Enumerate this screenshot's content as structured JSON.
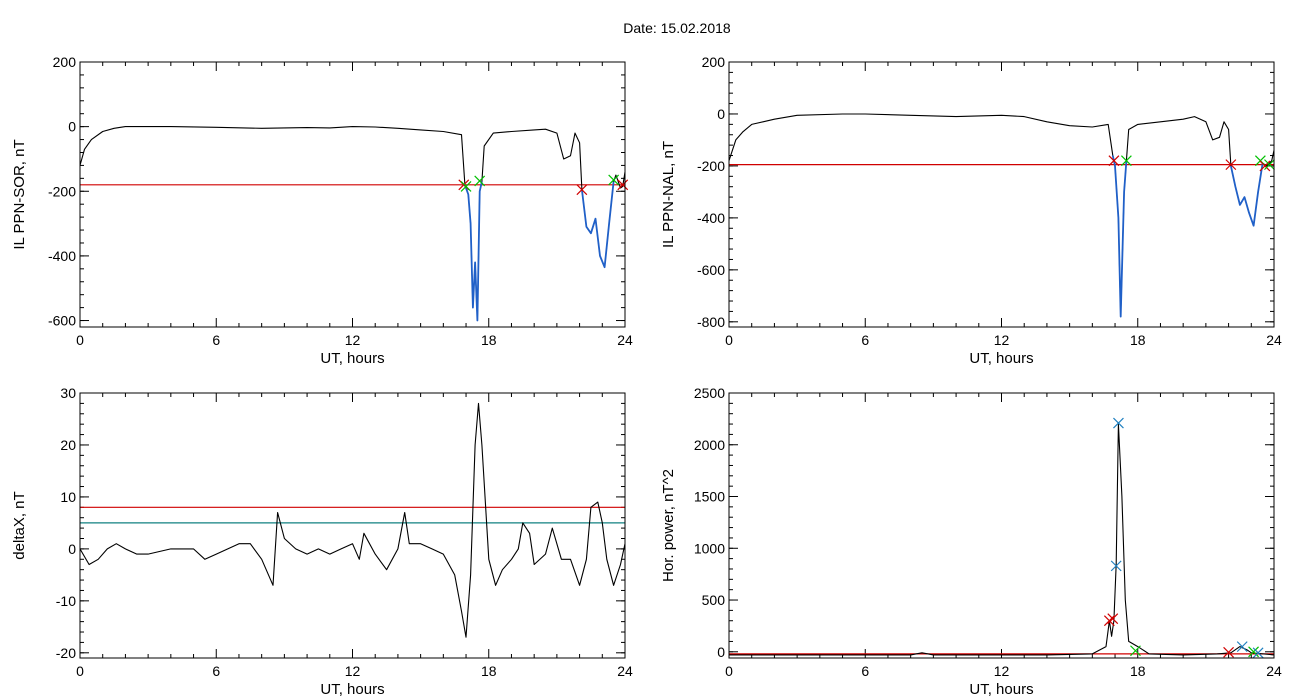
{
  "figure_title": "Date:  15.02.2018",
  "chart_data": [
    {
      "id": "ppn-sor",
      "type": "line",
      "xlabel": "UT, hours",
      "ylabel": "IL PPN-SOR, nT",
      "xlim": [
        0,
        24
      ],
      "ylim": [
        -620,
        200
      ],
      "xticks": [
        "0",
        "6",
        "12",
        "18",
        "24"
      ],
      "yticks": [
        {
          "v": 200,
          "t": "200"
        },
        {
          "v": 0,
          "t": "0"
        },
        {
          "v": -200,
          "t": "-200"
        },
        {
          "v": -400,
          "t": "-400"
        },
        {
          "v": -600,
          "t": "-600"
        }
      ],
      "series": [
        {
          "color": "#000000",
          "points": [
            [
              0,
              -120
            ],
            [
              0.2,
              -70
            ],
            [
              0.5,
              -40
            ],
            [
              1,
              -15
            ],
            [
              1.5,
              -5
            ],
            [
              2,
              0
            ],
            [
              4,
              0
            ],
            [
              6,
              -2
            ],
            [
              8,
              -5
            ],
            [
              10,
              -3
            ],
            [
              11,
              -4
            ],
            [
              12,
              0
            ],
            [
              13,
              -1
            ],
            [
              14,
              -5
            ],
            [
              15,
              -10
            ],
            [
              16,
              -15
            ],
            [
              16.8,
              -25
            ],
            [
              16.95,
              -180
            ],
            [
              17.1,
              -210
            ],
            [
              17.2,
              -300
            ],
            [
              17.3,
              -560
            ],
            [
              17.4,
              -420
            ],
            [
              17.5,
              -600
            ],
            [
              17.6,
              -200
            ],
            [
              17.7,
              -170
            ],
            [
              17.8,
              -60
            ],
            [
              18.2,
              -20
            ],
            [
              19,
              -15
            ],
            [
              20,
              -10
            ],
            [
              20.5,
              -8
            ],
            [
              21,
              -20
            ],
            [
              21.3,
              -100
            ],
            [
              21.6,
              -90
            ],
            [
              21.8,
              -20
            ],
            [
              22,
              -50
            ],
            [
              22.1,
              -195
            ],
            [
              22.3,
              -310
            ],
            [
              22.5,
              -330
            ],
            [
              22.7,
              -285
            ],
            [
              22.9,
              -400
            ],
            [
              23.1,
              -435
            ],
            [
              23.3,
              -300
            ],
            [
              23.5,
              -170
            ],
            [
              23.6,
              -150
            ],
            [
              23.8,
              -190
            ],
            [
              23.9,
              -185
            ],
            [
              24,
              -140
            ]
          ]
        }
      ],
      "highlights": [
        {
          "color": "#2060c8",
          "points": [
            [
              16.95,
              -180
            ],
            [
              17.1,
              -210
            ],
            [
              17.2,
              -300
            ],
            [
              17.3,
              -560
            ],
            [
              17.4,
              -420
            ],
            [
              17.5,
              -600
            ],
            [
              17.6,
              -200
            ],
            [
              17.7,
              -170
            ]
          ]
        },
        {
          "color": "#2060c8",
          "points": [
            [
              22.1,
              -195
            ],
            [
              22.3,
              -310
            ],
            [
              22.5,
              -330
            ],
            [
              22.7,
              -285
            ],
            [
              22.9,
              -400
            ],
            [
              23.1,
              -435
            ],
            [
              23.3,
              -300
            ],
            [
              23.5,
              -170
            ]
          ]
        }
      ],
      "hlines": [
        {
          "y": -180,
          "color": "#d00000"
        }
      ],
      "markers": [
        {
          "x": 16.9,
          "y": -180,
          "color": "#d00000"
        },
        {
          "x": 17.0,
          "y": -185,
          "color": "#00c000"
        },
        {
          "x": 17.6,
          "y": -168,
          "color": "#00c000"
        },
        {
          "x": 22.1,
          "y": -195,
          "color": "#d00000"
        },
        {
          "x": 23.5,
          "y": -165,
          "color": "#00c000"
        },
        {
          "x": 23.9,
          "y": -180,
          "color": "#d00000"
        }
      ]
    },
    {
      "id": "ppn-nal",
      "type": "line",
      "xlabel": "UT, hours",
      "ylabel": "IL PPN-NAL, nT",
      "xlim": [
        0,
        24
      ],
      "ylim": [
        -820,
        200
      ],
      "xticks": [
        "0",
        "6",
        "12",
        "18",
        "24"
      ],
      "yticks": [
        {
          "v": 200,
          "t": "200"
        },
        {
          "v": 0,
          "t": "0"
        },
        {
          "v": -200,
          "t": "-200"
        },
        {
          "v": -400,
          "t": "-400"
        },
        {
          "v": -600,
          "t": "-600"
        },
        {
          "v": -800,
          "t": "-800"
        }
      ],
      "series": [
        {
          "color": "#000000",
          "points": [
            [
              0,
              -180
            ],
            [
              0.3,
              -100
            ],
            [
              0.6,
              -70
            ],
            [
              1,
              -40
            ],
            [
              1.5,
              -30
            ],
            [
              2,
              -20
            ],
            [
              3,
              -5
            ],
            [
              5,
              0
            ],
            [
              6,
              0
            ],
            [
              8,
              -5
            ],
            [
              10,
              -10
            ],
            [
              12,
              -5
            ],
            [
              13,
              -10
            ],
            [
              14,
              -30
            ],
            [
              15,
              -45
            ],
            [
              16,
              -50
            ],
            [
              16.7,
              -40
            ],
            [
              16.9,
              -160
            ],
            [
              17.0,
              -200
            ],
            [
              17.15,
              -400
            ],
            [
              17.25,
              -780
            ],
            [
              17.4,
              -300
            ],
            [
              17.5,
              -180
            ],
            [
              17.6,
              -60
            ],
            [
              18,
              -40
            ],
            [
              19,
              -30
            ],
            [
              20,
              -20
            ],
            [
              20.5,
              -10
            ],
            [
              21,
              -30
            ],
            [
              21.3,
              -100
            ],
            [
              21.6,
              -90
            ],
            [
              21.8,
              -30
            ],
            [
              22.0,
              -60
            ],
            [
              22.1,
              -200
            ],
            [
              22.3,
              -280
            ],
            [
              22.5,
              -350
            ],
            [
              22.7,
              -320
            ],
            [
              22.9,
              -380
            ],
            [
              23.1,
              -430
            ],
            [
              23.3,
              -300
            ],
            [
              23.5,
              -190
            ],
            [
              23.7,
              -200
            ],
            [
              23.9,
              -180
            ],
            [
              24,
              -140
            ]
          ]
        }
      ],
      "highlights": [
        {
          "color": "#2060c8",
          "points": [
            [
              16.9,
              -160
            ],
            [
              17.0,
              -200
            ],
            [
              17.15,
              -400
            ],
            [
              17.25,
              -780
            ],
            [
              17.4,
              -300
            ],
            [
              17.5,
              -180
            ]
          ]
        },
        {
          "color": "#2060c8",
          "points": [
            [
              22.1,
              -200
            ],
            [
              22.3,
              -280
            ],
            [
              22.5,
              -350
            ],
            [
              22.7,
              -320
            ],
            [
              22.9,
              -380
            ],
            [
              23.1,
              -430
            ],
            [
              23.3,
              -300
            ],
            [
              23.5,
              -190
            ]
          ]
        }
      ],
      "hlines": [
        {
          "y": -195,
          "color": "#d00000"
        }
      ],
      "markers": [
        {
          "x": 16.95,
          "y": -180,
          "color": "#d00000"
        },
        {
          "x": 17.5,
          "y": -180,
          "color": "#00c000"
        },
        {
          "x": 22.1,
          "y": -195,
          "color": "#d00000"
        },
        {
          "x": 23.4,
          "y": -180,
          "color": "#00c000"
        },
        {
          "x": 23.6,
          "y": -200,
          "color": "#d00000"
        },
        {
          "x": 23.8,
          "y": -195,
          "color": "#00c000"
        }
      ]
    },
    {
      "id": "deltax",
      "type": "line",
      "xlabel": "UT, hours",
      "ylabel": "deltaX, nT",
      "xlim": [
        0,
        24
      ],
      "ylim": [
        -21,
        30
      ],
      "xticks": [
        "0",
        "6",
        "12",
        "18",
        "24"
      ],
      "yticks": [
        {
          "v": 30,
          "t": "30"
        },
        {
          "v": 20,
          "t": "20"
        },
        {
          "v": 10,
          "t": "10"
        },
        {
          "v": 0,
          "t": "0"
        },
        {
          "v": -10,
          "t": "-10"
        },
        {
          "v": -20,
          "t": "-20"
        }
      ],
      "series": [
        {
          "color": "#000000",
          "points": [
            [
              0,
              0
            ],
            [
              0.4,
              -3
            ],
            [
              0.8,
              -2
            ],
            [
              1.2,
              0
            ],
            [
              1.6,
              1
            ],
            [
              2,
              0
            ],
            [
              2.5,
              -1
            ],
            [
              3,
              -1
            ],
            [
              4,
              0
            ],
            [
              5,
              0
            ],
            [
              5.5,
              -2
            ],
            [
              6,
              -1
            ],
            [
              7,
              1
            ],
            [
              7.5,
              1
            ],
            [
              8,
              -2
            ],
            [
              8.5,
              -7
            ],
            [
              8.7,
              7
            ],
            [
              9,
              2
            ],
            [
              9.5,
              0
            ],
            [
              10,
              -1
            ],
            [
              10.5,
              0
            ],
            [
              11,
              -1
            ],
            [
              11.5,
              0
            ],
            [
              12,
              1
            ],
            [
              12.3,
              -2
            ],
            [
              12.5,
              3
            ],
            [
              13,
              -1
            ],
            [
              13.5,
              -4
            ],
            [
              14,
              0
            ],
            [
              14.3,
              7
            ],
            [
              14.5,
              1
            ],
            [
              15,
              1
            ],
            [
              15.5,
              0
            ],
            [
              16,
              -1
            ],
            [
              16.5,
              -5
            ],
            [
              16.8,
              -12
            ],
            [
              17,
              -17
            ],
            [
              17.2,
              -5
            ],
            [
              17.4,
              20
            ],
            [
              17.55,
              28
            ],
            [
              17.7,
              20
            ],
            [
              18,
              -2
            ],
            [
              18.3,
              -7
            ],
            [
              18.6,
              -4
            ],
            [
              19,
              -2
            ],
            [
              19.3,
              0
            ],
            [
              19.5,
              5
            ],
            [
              19.8,
              3
            ],
            [
              20,
              -3
            ],
            [
              20.5,
              -1
            ],
            [
              20.8,
              4
            ],
            [
              21.2,
              -2
            ],
            [
              21.6,
              -2
            ],
            [
              22,
              -7
            ],
            [
              22.3,
              -2
            ],
            [
              22.5,
              8
            ],
            [
              22.8,
              9
            ],
            [
              23,
              5
            ],
            [
              23.2,
              -2
            ],
            [
              23.5,
              -7
            ],
            [
              23.8,
              -3
            ],
            [
              24,
              1
            ]
          ]
        }
      ],
      "hlines": [
        {
          "y": 8,
          "color": "#d00000"
        },
        {
          "y": 5,
          "color": "#108080"
        }
      ]
    },
    {
      "id": "hor-power",
      "type": "line",
      "xlabel": "UT, hours",
      "ylabel": "Hor. power, nT^2",
      "xlim": [
        0,
        24
      ],
      "ylim": [
        -60,
        2500
      ],
      "xticks": [
        "0",
        "6",
        "12",
        "18",
        "24"
      ],
      "yticks": [
        {
          "v": 2500,
          "t": "2500"
        },
        {
          "v": 2000,
          "t": "2000"
        },
        {
          "v": 1500,
          "t": "1500"
        },
        {
          "v": 1000,
          "t": "1000"
        },
        {
          "v": 500,
          "t": "500"
        },
        {
          "v": 0,
          "t": "0"
        }
      ],
      "series": [
        {
          "color": "#000000",
          "points": [
            [
              0,
              -30
            ],
            [
              8,
              -30
            ],
            [
              8.5,
              -10
            ],
            [
              9,
              -30
            ],
            [
              14,
              -30
            ],
            [
              16,
              -20
            ],
            [
              16.6,
              50
            ],
            [
              16.75,
              300
            ],
            [
              16.85,
              150
            ],
            [
              16.95,
              300
            ],
            [
              17.05,
              850
            ],
            [
              17.15,
              2200
            ],
            [
              17.3,
              1500
            ],
            [
              17.45,
              500
            ],
            [
              17.6,
              100
            ],
            [
              18,
              50
            ],
            [
              18.5,
              -20
            ],
            [
              20,
              -30
            ],
            [
              21.5,
              -20
            ],
            [
              22.1,
              -10
            ],
            [
              22.5,
              50
            ],
            [
              22.8,
              20
            ],
            [
              23,
              -10
            ],
            [
              24,
              -30
            ]
          ]
        }
      ],
      "hlines": [
        {
          "y": -20,
          "color": "#d00000"
        }
      ],
      "markers": [
        {
          "x": 16.75,
          "y": 300,
          "color": "#d00000"
        },
        {
          "x": 16.9,
          "y": 320,
          "color": "#d00000"
        },
        {
          "x": 17.05,
          "y": 830,
          "color": "#2080c0"
        },
        {
          "x": 17.15,
          "y": 2210,
          "color": "#2080c0"
        },
        {
          "x": 17.9,
          "y": 10,
          "color": "#00c000"
        },
        {
          "x": 22.0,
          "y": -5,
          "color": "#d00000"
        },
        {
          "x": 22.6,
          "y": 50,
          "color": "#2080c0"
        },
        {
          "x": 23.1,
          "y": 0,
          "color": "#00c000"
        },
        {
          "x": 23.3,
          "y": -10,
          "color": "#2080c0"
        }
      ]
    }
  ]
}
